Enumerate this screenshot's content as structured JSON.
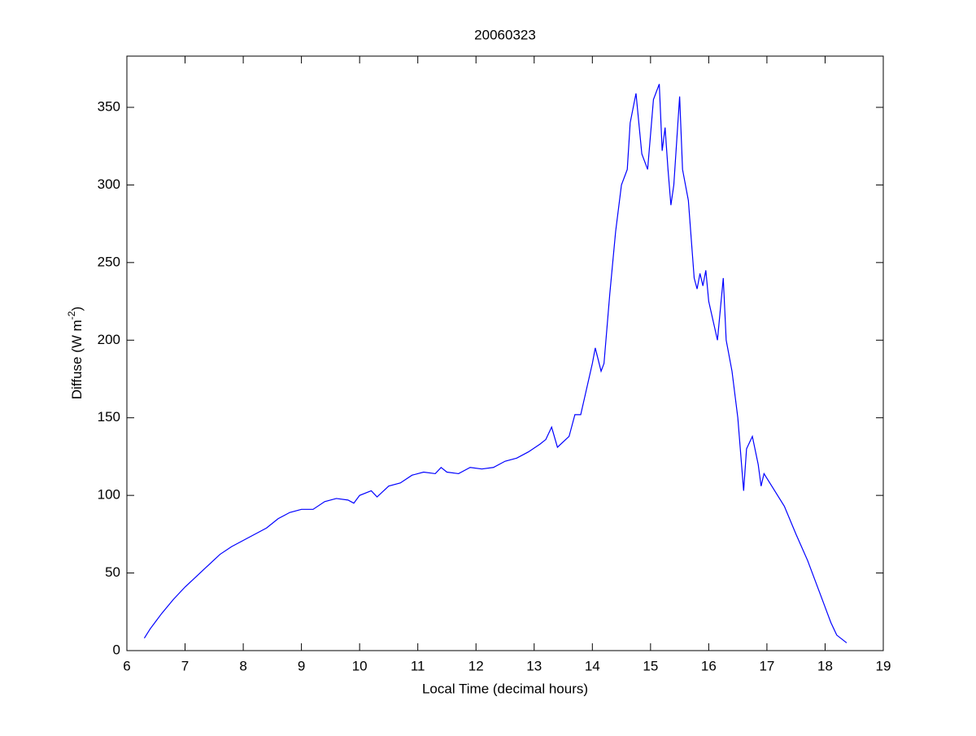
{
  "chart_data": {
    "type": "line",
    "title": "20060323",
    "xlabel": "Local Time (decimal hours)",
    "ylabel": [
      "Diffuse (W m",
      "-2",
      ")"
    ],
    "xlim": [
      6,
      19
    ],
    "ylim": [
      0,
      383
    ],
    "xticks": [
      6,
      7,
      8,
      9,
      10,
      11,
      12,
      13,
      14,
      15,
      16,
      17,
      18,
      19
    ],
    "yticks": [
      0,
      50,
      100,
      150,
      200,
      250,
      300,
      350
    ],
    "grid": false,
    "series": [
      {
        "color": "#0000ff",
        "x": [
          6.3,
          6.4,
          6.5,
          6.6,
          6.8,
          7,
          7.2,
          7.4,
          7.6,
          7.8,
          8,
          8.2,
          8.4,
          8.6,
          8.8,
          9,
          9.2,
          9.4,
          9.6,
          9.8,
          9.9,
          10,
          10.2,
          10.3,
          10.5,
          10.7,
          10.9,
          11.1,
          11.3,
          11.4,
          11.5,
          11.7,
          11.9,
          12.1,
          12.3,
          12.5,
          12.7,
          12.9,
          13.1,
          13.2,
          13.3,
          13.4,
          13.6,
          13.7,
          13.8,
          14,
          14.05,
          14.15,
          14.2,
          14.3,
          14.4,
          14.5,
          14.6,
          14.65,
          14.75,
          14.85,
          14.95,
          15.05,
          15.15,
          15.2,
          15.25,
          15.3,
          15.35,
          15.4,
          15.5,
          15.55,
          15.65,
          15.75,
          15.8,
          15.85,
          15.9,
          15.95,
          16,
          16.15,
          16.25,
          16.3,
          16.4,
          16.5,
          16.6,
          16.65,
          16.75,
          16.85,
          16.9,
          16.95,
          17.1,
          17.3,
          17.5,
          17.7,
          17.9,
          18.1,
          18.2,
          18.37
        ],
        "values": [
          8,
          14,
          19,
          24,
          33,
          41,
          48,
          55,
          62,
          67,
          71,
          75,
          79,
          85,
          89,
          91,
          91,
          96,
          98,
          97,
          95,
          100,
          103,
          99,
          106,
          108,
          113,
          115,
          114,
          118,
          115,
          114,
          118,
          117,
          118,
          122,
          124,
          128,
          133,
          136,
          144,
          131,
          138,
          152,
          152,
          185,
          195,
          180,
          185,
          230,
          270,
          300,
          310,
          340,
          359,
          320,
          310,
          355,
          365,
          322,
          337,
          310,
          287,
          300,
          357,
          310,
          290,
          240,
          233,
          243,
          235,
          245,
          225,
          200,
          240,
          200,
          180,
          150,
          103,
          130,
          138,
          120,
          106,
          114,
          105,
          93,
          75,
          58,
          38,
          18,
          10,
          5
        ]
      }
    ]
  }
}
